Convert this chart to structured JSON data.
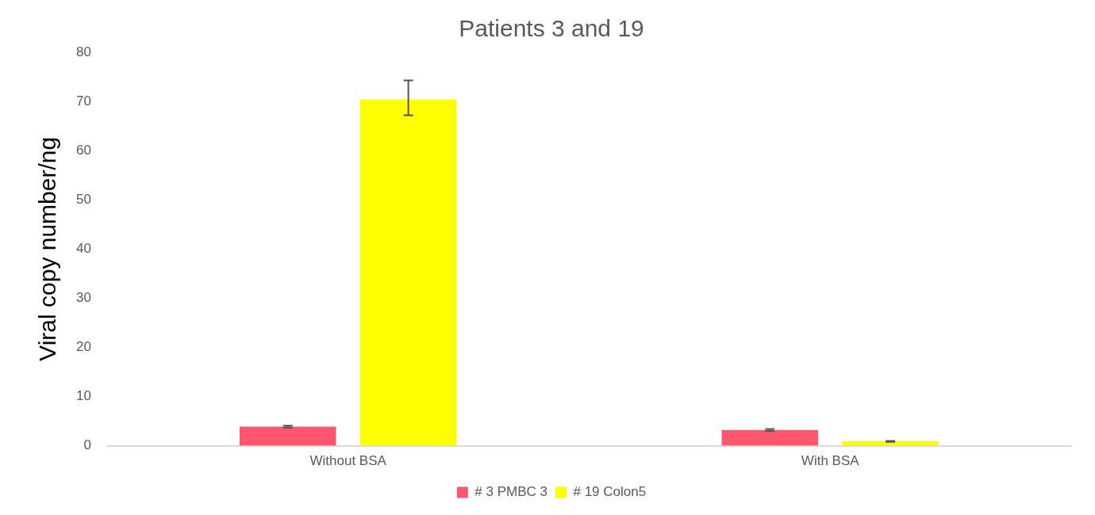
{
  "chart_data": {
    "type": "bar",
    "title": "Patients 3 and 19",
    "ylabel": "Viral copy number/ng",
    "categories": [
      "Without BSA",
      "With BSA"
    ],
    "series": [
      {
        "name": "# 3 PMBC 3",
        "color": "#ff5670",
        "values": [
          3.9,
          3.2
        ],
        "errors": [
          0.2,
          0.2
        ]
      },
      {
        "name": "# 19 Colon5",
        "color": "#ffff00",
        "values": [
          70.4,
          0.9
        ],
        "errors": [
          [
            67.2,
            74.3
          ],
          0.1
        ]
      }
    ],
    "ylim": [
      0,
      80
    ],
    "yticks": [
      0,
      10,
      20,
      30,
      40,
      50,
      60,
      70,
      80
    ],
    "grid": false,
    "legend": "bottom"
  }
}
